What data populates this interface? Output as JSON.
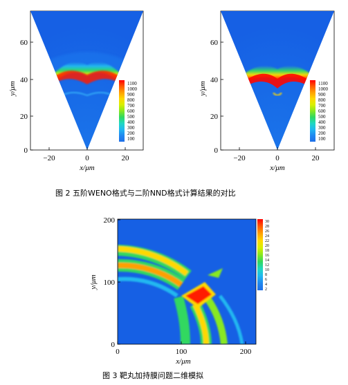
{
  "figure2": {
    "caption": "图 2   五阶WENO格式与二阶NND格式计算结果的对比",
    "panels": [
      {
        "name": "weno5",
        "xlabel": "x/μm",
        "ylabel": "y/μm",
        "xticks": [
          "−20",
          "0",
          "20"
        ],
        "yticks": [
          "0",
          "20",
          "40",
          "60"
        ],
        "legend_levels": [
          "1100",
          "1000",
          "900",
          "800",
          "700",
          "600",
          "500",
          "400",
          "300",
          "200",
          "100"
        ]
      },
      {
        "name": "nnd2",
        "xlabel": "x/μm",
        "ylabel": "y/μm",
        "xticks": [
          "−20",
          "0",
          "20"
        ],
        "yticks": [
          "0",
          "20",
          "40",
          "60"
        ],
        "legend_levels": [
          "1100",
          "1000",
          "900",
          "800",
          "700",
          "600",
          "500",
          "400",
          "300",
          "200",
          "100"
        ]
      }
    ]
  },
  "figure3": {
    "caption": "图 3   靶丸加持膜问题二维模拟",
    "xlabel": "x/μm",
    "ylabel": "y/μm",
    "xticks": [
      "0",
      "100",
      "200"
    ],
    "yticks": [
      "0",
      "100",
      "200"
    ],
    "legend_levels": [
      "30",
      "28",
      "26",
      "24",
      "22",
      "20",
      "18",
      "16",
      "14",
      "12",
      "10",
      "8",
      "6",
      "4",
      "2"
    ]
  },
  "colors": {
    "background_field": "#1f6fe8",
    "legend_scale": [
      "#ff0000",
      "#ff5a00",
      "#ffa000",
      "#ffd800",
      "#d8f000",
      "#88e820",
      "#30d860",
      "#20d8c0",
      "#20b8f0",
      "#2088f0",
      "#1f6fe8"
    ]
  }
}
